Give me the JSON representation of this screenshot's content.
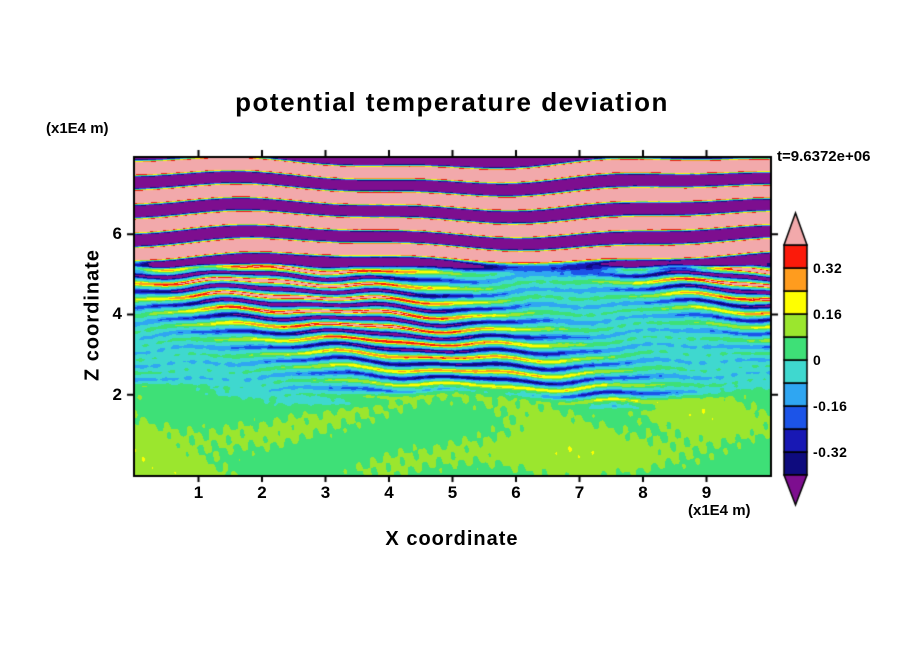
{
  "chart_data": {
    "type": "heatmap",
    "title": "potential temperature deviation",
    "xlabel": "X coordinate",
    "ylabel": "Z coordinate",
    "x_axis_unit_label": "(x1E4 m)",
    "z_axis_unit_label": "(x1E4 m)",
    "time_label": "t=9.6372e+06",
    "xlim": [
      0,
      10
    ],
    "zlim": [
      0,
      7.9
    ],
    "x_ticks": [
      1,
      2,
      3,
      4,
      5,
      6,
      7,
      8,
      9
    ],
    "z_ticks": [
      2,
      4,
      6
    ],
    "grid": false,
    "frame_color": "#000000",
    "text_color": "#000000",
    "background_color": "#ffffff",
    "legend_position": "right-colorbar",
    "colorbar": {
      "levels": [
        -0.4,
        -0.32,
        -0.24,
        -0.16,
        -0.08,
        0,
        0.08,
        0.16,
        0.24,
        0.32,
        0.4
      ],
      "segment_colors_bottom_to_top": [
        "#0E0B7E",
        "#1818B4",
        "#1C54E8",
        "#2FA6F2",
        "#3FD8CF",
        "#3EE077",
        "#9BE62E",
        "#FFFF00",
        "#FF9C1E",
        "#FB1A0A"
      ],
      "under_arrow_color": "#7D0E8F",
      "over_arrow_color": "#F2A9AB",
      "tick_labels": [
        {
          "label": "0.32",
          "level": 0.32
        },
        {
          "label": "0.16",
          "level": 0.16
        },
        {
          "label": "0",
          "level": 0
        },
        {
          "label": "-0.16",
          "level": -0.16
        },
        {
          "label": "-0.32",
          "level": -0.32
        }
      ]
    },
    "field_model": {
      "procedural_approximation": true,
      "bottom": {
        "base": 0.085,
        "amp": 0.06
      },
      "middle": {
        "base": -0.045,
        "amp": 0.62,
        "kz": 17.5
      },
      "top": {
        "base": 0.12,
        "amp": 1.4,
        "kz": 9.3
      },
      "blend_bottom": [
        1.7,
        2.25
      ],
      "blend_top": [
        4.95,
        5.6
      ]
    }
  }
}
